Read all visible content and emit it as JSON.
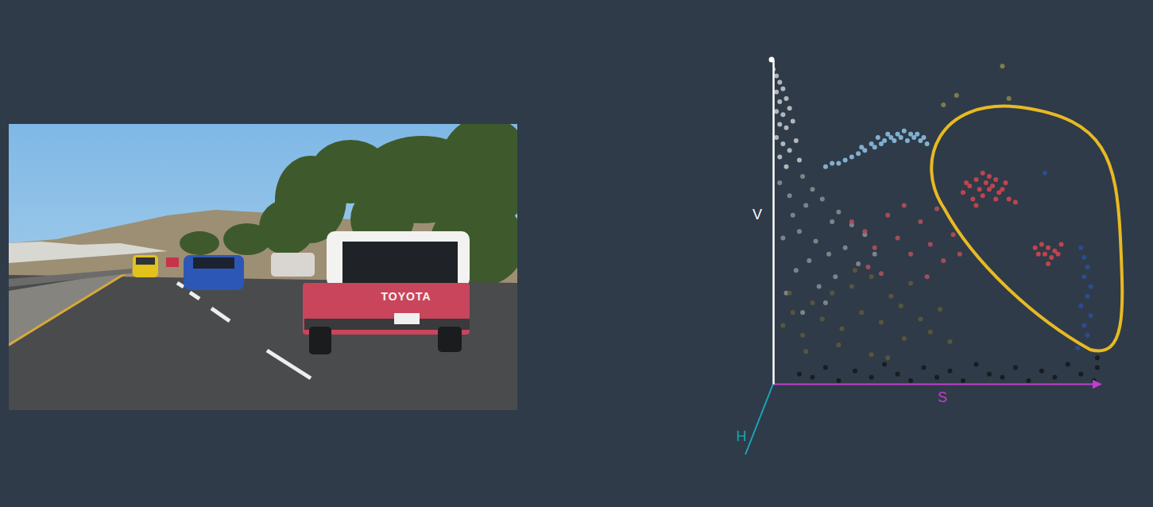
{
  "photo": {
    "text": "TOYOTA"
  },
  "chart_data": {
    "type": "scatter",
    "xlabel": "S",
    "ylabel": "V",
    "zlabel": "H",
    "xlim": [
      0,
      1
    ],
    "ylim": [
      0,
      1
    ],
    "xticks": [],
    "yticks": [],
    "tick_labels": false,
    "grid": false,
    "series": [
      {
        "color": "#c9ccd0",
        "x": [
          0.0,
          0.01,
          0.02,
          0.01,
          0.03,
          0.02,
          0.04,
          0.01,
          0.03,
          0.05,
          0.02,
          0.04,
          0.06,
          0.01,
          0.03,
          0.05,
          0.07,
          0.02,
          0.04,
          0.08
        ],
        "y": [
          0.97,
          0.95,
          0.93,
          0.9,
          0.91,
          0.87,
          0.88,
          0.84,
          0.83,
          0.85,
          0.8,
          0.79,
          0.81,
          0.76,
          0.74,
          0.72,
          0.75,
          0.7,
          0.67,
          0.69
        ]
      },
      {
        "color": "#8b9096",
        "x": [
          0.02,
          0.05,
          0.09,
          0.12,
          0.06,
          0.1,
          0.15,
          0.18,
          0.03,
          0.08,
          0.13,
          0.2,
          0.24,
          0.11,
          0.17,
          0.07,
          0.22,
          0.14,
          0.28,
          0.04,
          0.19,
          0.26,
          0.09,
          0.31,
          0.16
        ],
        "y": [
          0.62,
          0.58,
          0.64,
          0.6,
          0.52,
          0.55,
          0.57,
          0.5,
          0.45,
          0.47,
          0.44,
          0.53,
          0.49,
          0.38,
          0.4,
          0.35,
          0.42,
          0.3,
          0.46,
          0.28,
          0.33,
          0.37,
          0.22,
          0.4,
          0.25
        ]
      },
      {
        "color": "#8ec5ea",
        "x": [
          0.16,
          0.18,
          0.2,
          0.22,
          0.24,
          0.26,
          0.27,
          0.28,
          0.3,
          0.31,
          0.32,
          0.34,
          0.35,
          0.36,
          0.38,
          0.39,
          0.4,
          0.42,
          0.43,
          0.44,
          0.45,
          0.46,
          0.47,
          0.33,
          0.37,
          0.41
        ],
        "y": [
          0.67,
          0.68,
          0.68,
          0.69,
          0.7,
          0.71,
          0.73,
          0.72,
          0.74,
          0.73,
          0.76,
          0.75,
          0.77,
          0.76,
          0.77,
          0.76,
          0.78,
          0.77,
          0.76,
          0.77,
          0.75,
          0.76,
          0.74,
          0.74,
          0.75,
          0.75
        ]
      },
      {
        "color": "#d9474f",
        "x": [
          0.58,
          0.6,
          0.61,
          0.62,
          0.63,
          0.64,
          0.65,
          0.66,
          0.67,
          0.68,
          0.69,
          0.7,
          0.72,
          0.74,
          0.62,
          0.66,
          0.68,
          0.71,
          0.59,
          0.64,
          0.8,
          0.82,
          0.83,
          0.84,
          0.85,
          0.86,
          0.87,
          0.88,
          0.84,
          0.81
        ],
        "y": [
          0.59,
          0.61,
          0.57,
          0.63,
          0.6,
          0.58,
          0.62,
          0.6,
          0.61,
          0.63,
          0.59,
          0.6,
          0.57,
          0.56,
          0.55,
          0.64,
          0.57,
          0.62,
          0.62,
          0.65,
          0.42,
          0.43,
          0.4,
          0.42,
          0.39,
          0.41,
          0.4,
          0.43,
          0.37,
          0.4
        ]
      },
      {
        "color": "#b5525a",
        "x": [
          0.24,
          0.28,
          0.31,
          0.35,
          0.38,
          0.42,
          0.45,
          0.48,
          0.52,
          0.55,
          0.33,
          0.4,
          0.47,
          0.57,
          0.29,
          0.5
        ],
        "y": [
          0.5,
          0.47,
          0.42,
          0.52,
          0.45,
          0.4,
          0.5,
          0.43,
          0.38,
          0.46,
          0.34,
          0.55,
          0.33,
          0.4,
          0.36,
          0.54
        ]
      },
      {
        "color": "#2a4fa0",
        "x": [
          0.94,
          0.95,
          0.96,
          0.95,
          0.97,
          0.96,
          0.94,
          0.97,
          0.95,
          0.96,
          0.93,
          0.83
        ],
        "y": [
          0.42,
          0.39,
          0.36,
          0.33,
          0.3,
          0.27,
          0.24,
          0.21,
          0.18,
          0.15,
          0.11,
          0.65
        ]
      },
      {
        "color": "#5f5a3c",
        "x": [
          0.03,
          0.06,
          0.09,
          0.12,
          0.15,
          0.18,
          0.21,
          0.24,
          0.27,
          0.3,
          0.33,
          0.36,
          0.39,
          0.42,
          0.45,
          0.48,
          0.51,
          0.54,
          0.1,
          0.2,
          0.3,
          0.4,
          0.05,
          0.25,
          0.35
        ],
        "y": [
          0.18,
          0.22,
          0.15,
          0.25,
          0.2,
          0.28,
          0.17,
          0.3,
          0.22,
          0.33,
          0.19,
          0.27,
          0.24,
          0.31,
          0.2,
          0.16,
          0.23,
          0.13,
          0.1,
          0.12,
          0.09,
          0.14,
          0.28,
          0.35,
          0.08
        ]
      },
      {
        "color": "#15171a",
        "x": [
          0.08,
          0.12,
          0.16,
          0.2,
          0.25,
          0.3,
          0.34,
          0.38,
          0.42,
          0.46,
          0.5,
          0.54,
          0.58,
          0.62,
          0.66,
          0.7,
          0.74,
          0.78,
          0.82,
          0.86,
          0.9,
          0.94,
          0.98,
          0.99,
          0.99
        ],
        "y": [
          0.03,
          0.02,
          0.05,
          0.01,
          0.04,
          0.02,
          0.06,
          0.03,
          0.01,
          0.05,
          0.02,
          0.04,
          0.01,
          0.06,
          0.03,
          0.02,
          0.05,
          0.01,
          0.04,
          0.02,
          0.06,
          0.03,
          0.01,
          0.05,
          0.08
        ]
      },
      {
        "color": "#8d8a4a",
        "x": [
          0.7,
          0.52,
          0.72,
          0.56
        ],
        "y": [
          0.98,
          0.86,
          0.88,
          0.89
        ]
      }
    ]
  }
}
